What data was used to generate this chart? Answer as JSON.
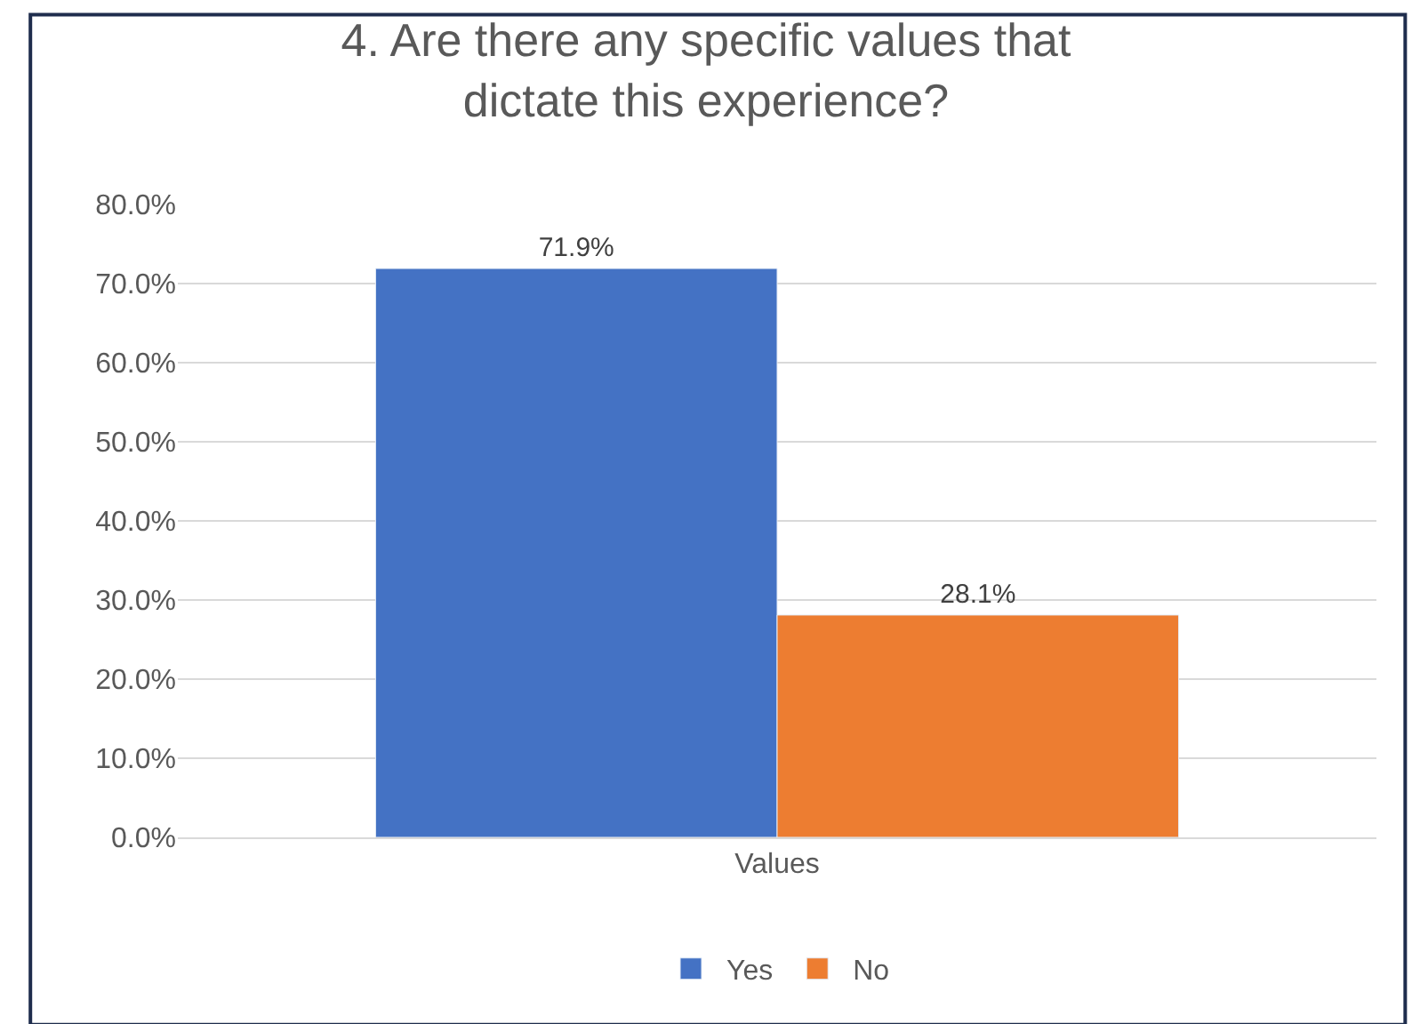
{
  "chart_data": {
    "type": "bar",
    "title": "4. Are there any specific values that dictate this experience?",
    "categories": [
      "Values"
    ],
    "series": [
      {
        "name": "Yes",
        "color": "#4472c4",
        "values": [
          71.9
        ],
        "value_labels": [
          "71.9%"
        ]
      },
      {
        "name": "No",
        "color": "#ed7d31",
        "values": [
          28.1
        ],
        "value_labels": [
          "28.1%"
        ]
      }
    ],
    "ylim": [
      0,
      80
    ],
    "yticks": [
      {
        "value": 0,
        "label": "0.0%"
      },
      {
        "value": 10,
        "label": "10.0%"
      },
      {
        "value": 20,
        "label": "20.0%"
      },
      {
        "value": 30,
        "label": "30.0%"
      },
      {
        "value": 40,
        "label": "40.0%"
      },
      {
        "value": 50,
        "label": "50.0%"
      },
      {
        "value": 60,
        "label": "60.0%"
      },
      {
        "value": 70,
        "label": "70.0%"
      },
      {
        "value": 80,
        "label": "80.0%"
      }
    ],
    "grid": "y",
    "legend": "bottom"
  }
}
